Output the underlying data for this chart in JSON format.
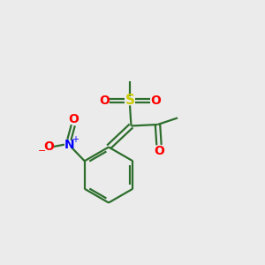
{
  "bg_color": "#ebebeb",
  "atom_colors": {
    "C": "#2d6e2d",
    "O": "#ff0000",
    "S": "#cccc00",
    "N": "#0000ff"
  },
  "bond_color": "#2d6e2d",
  "bond_lw": 1.6
}
